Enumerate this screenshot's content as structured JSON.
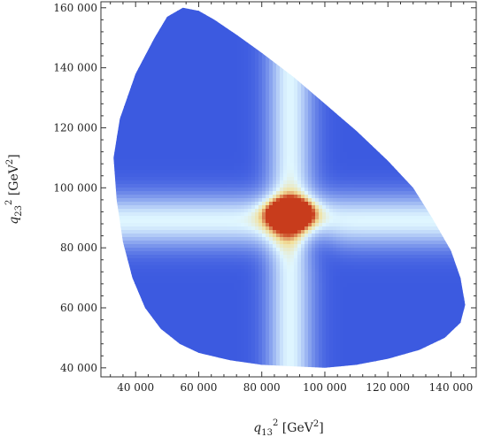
{
  "chart_data": {
    "type": "heatmap",
    "title": "",
    "xlabel": {
      "var": "q",
      "sub": "13",
      "sup": "2",
      "unit_open": " [GeV",
      "unit_sup": "2",
      "unit_close": "]"
    },
    "ylabel": {
      "var": "q",
      "sub": "23",
      "sup": "2",
      "unit_open": " [GeV",
      "unit_sup": "2",
      "unit_close": "]"
    },
    "xlim": [
      29000,
      148000
    ],
    "ylim": [
      37000,
      162000
    ],
    "x_ticks": [
      {
        "value": 40000,
        "label": "40 000"
      },
      {
        "value": 60000,
        "label": "60 000"
      },
      {
        "value": 80000,
        "label": "80 000"
      },
      {
        "value": 100000,
        "label": "100 000"
      },
      {
        "value": 120000,
        "label": "120 000"
      },
      {
        "value": 140000,
        "label": "140 000"
      }
    ],
    "y_ticks": [
      {
        "value": 40000,
        "label": "40 000"
      },
      {
        "value": 60000,
        "label": "60 000"
      },
      {
        "value": 80000,
        "label": "80 000"
      },
      {
        "value": 100000,
        "label": "100 000"
      },
      {
        "value": 120000,
        "label": "120 000"
      },
      {
        "value": 140000,
        "label": "140 000"
      },
      {
        "value": 160000,
        "label": "160 000"
      }
    ],
    "minor_ticks_per_major": 4,
    "grid": false,
    "region_boundary": [
      [
        33000,
        110000
      ],
      [
        35000,
        123000
      ],
      [
        40000,
        138000
      ],
      [
        46000,
        150000
      ],
      [
        50000,
        157000
      ],
      [
        55000,
        160000
      ],
      [
        60000,
        159000
      ],
      [
        65000,
        156000
      ],
      [
        72000,
        151000
      ],
      [
        80000,
        145000
      ],
      [
        90000,
        137000
      ],
      [
        100000,
        128000
      ],
      [
        110000,
        119000
      ],
      [
        120000,
        109000
      ],
      [
        128000,
        100000
      ],
      [
        134000,
        90000
      ],
      [
        140000,
        79000
      ],
      [
        143000,
        70000
      ],
      [
        144500,
        61000
      ],
      [
        143000,
        55000
      ],
      [
        138000,
        50000
      ],
      [
        130000,
        46000
      ],
      [
        120000,
        43000
      ],
      [
        110000,
        41000
      ],
      [
        100000,
        40000
      ],
      [
        90000,
        40500
      ],
      [
        80000,
        41000
      ],
      [
        70000,
        42500
      ],
      [
        60000,
        45000
      ],
      [
        54000,
        48000
      ],
      [
        48000,
        53000
      ],
      [
        43000,
        60000
      ],
      [
        39000,
        70000
      ],
      [
        36000,
        82000
      ],
      [
        34000,
        96000
      ]
    ],
    "bands": [
      {
        "axis": "y",
        "center": 89000,
        "width": 6000,
        "amplitude": 0.55
      },
      {
        "axis": "x",
        "center": 89000,
        "width": 5000,
        "amplitude": 0.55
      }
    ],
    "peak": {
      "x": 89000,
      "y": 91500,
      "sigma_x": 5000,
      "sigma_y": 3200,
      "amplitude": 1.0
    },
    "dip": {
      "x": 96000,
      "y": 83000,
      "sigma": 5000,
      "amplitude": 0.18
    },
    "colors": {
      "background": "#ffffff",
      "frame": "#333333",
      "low": "#3c5ae0",
      "mid": "#dff6ff",
      "high": "#f2e09a",
      "peak": "#c83c1c"
    }
  }
}
